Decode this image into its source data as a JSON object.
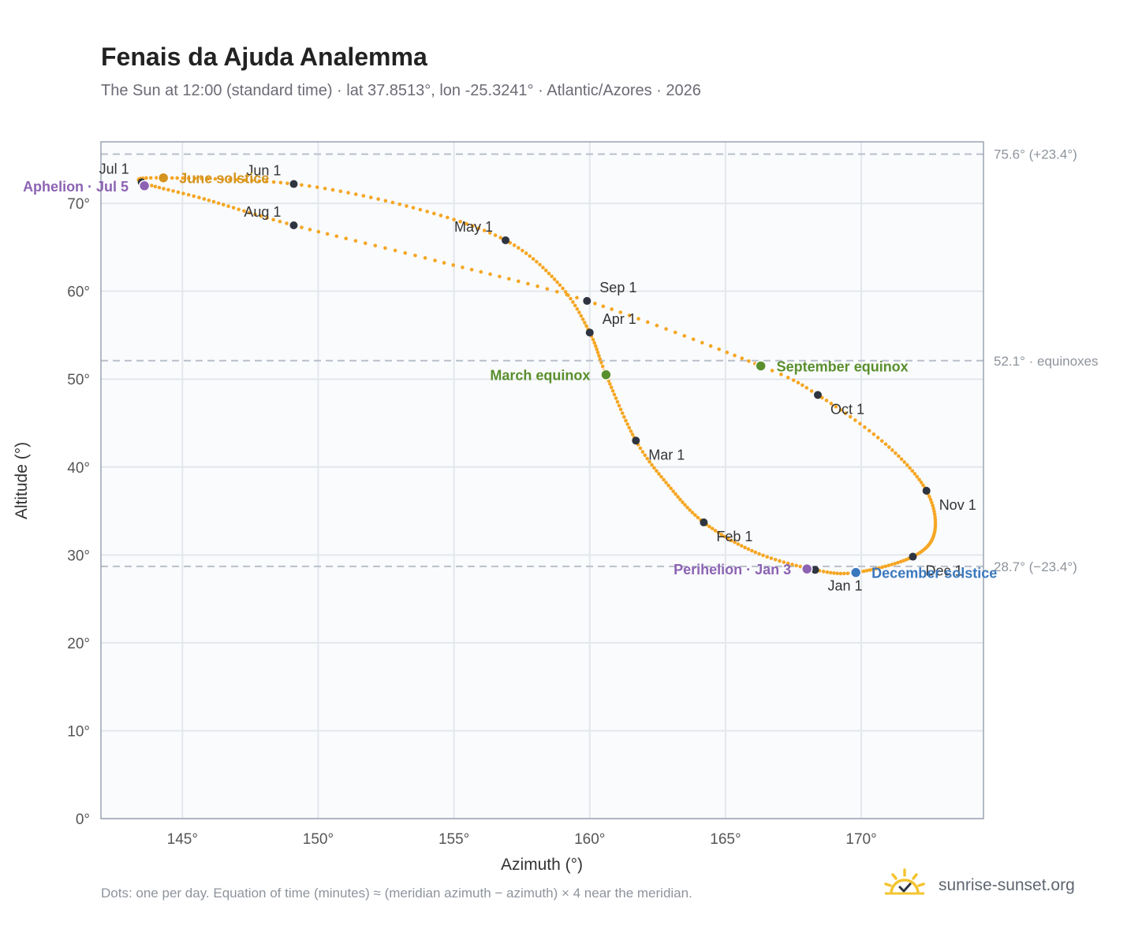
{
  "title": "Fenais da Ajuda Analemma",
  "subtitle": "The Sun at 12:00 (standard time) · lat 37.8513°, lon -25.3241° · Atlantic/Azores · 2026",
  "footnote": "Dots: one per day. Equation of time (minutes) ≈ (meridian azimuth − azimuth) × 4 near the meridian.",
  "brand": {
    "name": "sunrise-sunset.org",
    "icon": "sun-check-icon",
    "color": "#f4c430"
  },
  "colors": {
    "curve": "#f5a623",
    "month_marker": "#2f3540",
    "solstice_june": "#d4941e",
    "solstice_december": "#3a78bd",
    "equinox": "#5a8f2e",
    "apsis": "#8c63b3",
    "reference_line": "#b8c0ca",
    "plot_background": "#fafbfd",
    "grid": "#e3e7ec"
  },
  "chart_data": {
    "type": "scatter",
    "xlabel": "Azimuth (°)",
    "ylabel": "Altitude (°)",
    "xlim": [
      142,
      174.5
    ],
    "ylim": [
      0,
      77
    ],
    "xticks": [
      145,
      150,
      155,
      160,
      165,
      170
    ],
    "yticks": [
      0,
      10,
      20,
      30,
      40,
      50,
      60,
      70
    ],
    "grid": true,
    "reference_lines": [
      {
        "y": 75.6,
        "label": "75.6° (+23.4°)"
      },
      {
        "y": 52.1,
        "label": "52.1° · equinoxes"
      },
      {
        "y": 28.7,
        "label": "28.7° (−23.4°)"
      }
    ],
    "series": [
      {
        "points": [
          {
            "date": "2026-01-01",
            "az": 168.3,
            "alt": 28.3
          },
          {
            "date": "2026-01-16",
            "az": 166.1,
            "alt": 30.3
          },
          {
            "date": "2026-02-01",
            "az": 164.2,
            "alt": 33.7
          },
          {
            "date": "2026-02-15",
            "az": 162.9,
            "alt": 37.9
          },
          {
            "date": "2026-03-01",
            "az": 161.7,
            "alt": 43.0
          },
          {
            "date": "2026-03-20",
            "az": 160.6,
            "alt": 50.5
          },
          {
            "date": "2026-04-01",
            "az": 160.0,
            "alt": 55.3
          },
          {
            "date": "2026-04-15",
            "az": 158.9,
            "alt": 60.7
          },
          {
            "date": "2026-05-01",
            "az": 156.9,
            "alt": 65.8
          },
          {
            "date": "2026-05-16",
            "az": 153.5,
            "alt": 69.5
          },
          {
            "date": "2026-06-01",
            "az": 149.1,
            "alt": 72.2
          },
          {
            "date": "2026-06-21",
            "az": 144.3,
            "alt": 72.9
          },
          {
            "date": "2026-07-01",
            "az": 143.5,
            "alt": 72.4
          },
          {
            "date": "2026-07-16",
            "az": 145.8,
            "alt": 70.5
          },
          {
            "date": "2026-08-01",
            "az": 149.1,
            "alt": 67.5
          },
          {
            "date": "2026-08-16",
            "az": 154.3,
            "alt": 63.5
          },
          {
            "date": "2026-09-01",
            "az": 159.9,
            "alt": 58.9
          },
          {
            "date": "2026-09-22",
            "az": 166.3,
            "alt": 51.5
          },
          {
            "date": "2026-10-01",
            "az": 168.4,
            "alt": 48.2
          },
          {
            "date": "2026-10-16",
            "az": 170.9,
            "alt": 42.6
          },
          {
            "date": "2026-11-01",
            "az": 172.4,
            "alt": 37.3
          },
          {
            "date": "2026-11-16",
            "az": 172.7,
            "alt": 32.6
          },
          {
            "date": "2026-12-01",
            "az": 171.9,
            "alt": 29.8
          },
          {
            "date": "2026-12-21",
            "az": 169.8,
            "alt": 28.0
          }
        ]
      }
    ],
    "month_markers": [
      {
        "label": "Jan 1",
        "az": 168.3,
        "alt": 28.3,
        "pos": "below"
      },
      {
        "label": "Feb 1",
        "az": 164.2,
        "alt": 33.7,
        "pos": "right-below"
      },
      {
        "label": "Mar 1",
        "az": 161.7,
        "alt": 43.0,
        "pos": "right-below"
      },
      {
        "label": "Apr 1",
        "az": 160.0,
        "alt": 55.3,
        "pos": "right-above"
      },
      {
        "label": "May 1",
        "az": 156.9,
        "alt": 65.8,
        "pos": "left-above"
      },
      {
        "label": "Jun 1",
        "az": 149.1,
        "alt": 72.2,
        "pos": "left-above"
      },
      {
        "label": "Jul 1",
        "az": 143.5,
        "alt": 72.4,
        "pos": "left-above"
      },
      {
        "label": "Aug 1",
        "az": 149.1,
        "alt": 67.5,
        "pos": "left-above"
      },
      {
        "label": "Sep 1",
        "az": 159.9,
        "alt": 58.9,
        "pos": "right-above"
      },
      {
        "label": "Oct 1",
        "az": 168.4,
        "alt": 48.2,
        "pos": "right-below"
      },
      {
        "label": "Nov 1",
        "az": 172.4,
        "alt": 37.3,
        "pos": "right-below"
      },
      {
        "label": "Dec 1",
        "az": 171.9,
        "alt": 29.8,
        "pos": "right-below"
      }
    ],
    "events": [
      {
        "label": "June solstice",
        "az": 144.3,
        "alt": 72.9,
        "color": "#d4941e",
        "side": "right"
      },
      {
        "label": "Aphelion · Jul 5",
        "az": 143.6,
        "alt": 72.0,
        "color": "#8c63b3",
        "side": "left"
      },
      {
        "label": "March equinox",
        "az": 160.6,
        "alt": 50.5,
        "color": "#5a8f2e",
        "side": "left"
      },
      {
        "label": "September equinox",
        "az": 166.3,
        "alt": 51.5,
        "color": "#5a8f2e",
        "side": "right"
      },
      {
        "label": "Perihelion · Jan 3",
        "az": 168.0,
        "alt": 28.4,
        "color": "#8c63b3",
        "side": "left"
      },
      {
        "label": "December solstice",
        "az": 169.8,
        "alt": 28.0,
        "color": "#3a78bd",
        "side": "right"
      }
    ]
  }
}
